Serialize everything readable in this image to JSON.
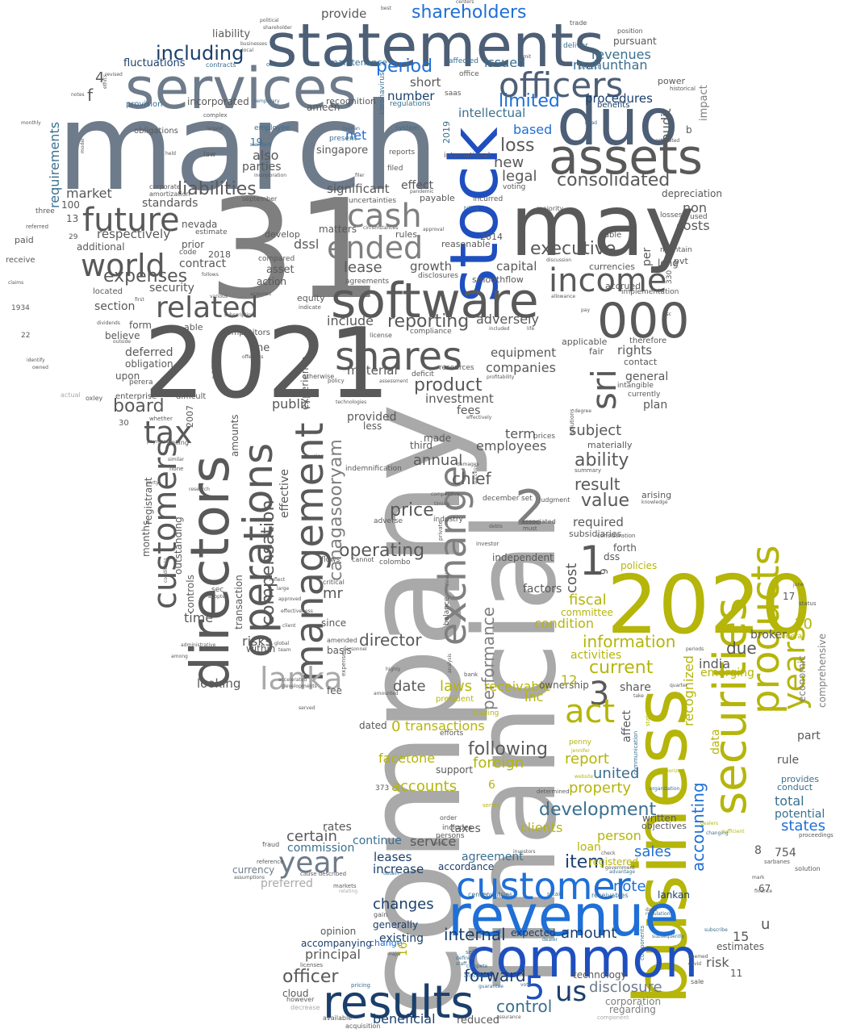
{
  "palette": {
    "slate": "#6e7b8b",
    "slate_dark": "#4d5f76",
    "grey_dark": "#595959",
    "grey_mid": "#7f7f7f",
    "grey_light": "#a9a9a9",
    "blue": "#1f6fd6",
    "blue_deep": "#1f4fbf",
    "olive": "#b5b50a",
    "navy": "#1b3f6b",
    "teal": "#3a6f8f"
  },
  "words": {
    "march": "march",
    "company": "company",
    "financial": "financial",
    "stock": "stock",
    "w31": "31",
    "w2021": "2021",
    "w2020": "2020",
    "statements": "statements",
    "services": "services",
    "duo": "duo",
    "may": "may",
    "assets": "assets",
    "business": "business",
    "securities": "securities",
    "directors": "directors",
    "revenue": "revenue",
    "common": "common",
    "software": "software",
    "officers": "officers",
    "results": "results",
    "management": "management",
    "operations": "operations",
    "customer": "customer",
    "products": "products",
    "w000": "000",
    "shares": "shares",
    "exchange": "exchange",
    "customers": "customers",
    "sri": "sri",
    "income": "income",
    "future": "future",
    "world": "world",
    "cash": "cash",
    "ended": "ended",
    "related": "related",
    "tax": "tax",
    "lanka": "lanka",
    "years": "years",
    "year": "year",
    "w5": "5",
    "us": "us",
    "w3": "3",
    "w2": "2",
    "w1": "1",
    "act": "act",
    "shareholders": "shareholders",
    "period": "period",
    "including": "including",
    "limited": "limited",
    "loss": "loss",
    "consolidated": "consolidated",
    "liabilities": "liabilities",
    "executive": "executive",
    "expenses": "expenses",
    "reporting": "reporting",
    "operating": "operating",
    "compensation": "compensation",
    "canagasooryam": "canagasooryam",
    "board": "board",
    "price": "price",
    "product": "product",
    "chief": "chief",
    "ability": "ability",
    "value": "value",
    "result": "result",
    "director": "director",
    "development": "development",
    "information": "information",
    "current": "current",
    "performance": "performance",
    "accounting": "accounting",
    "officer": "officer",
    "forward": "forward",
    "control": "control",
    "internal": "internal",
    "amount": "amount",
    "note": "note",
    "item": "item",
    "changes": "changes",
    "certain": "certain",
    "principal": "principal",
    "beneficial": "beneficial",
    "disclosure": "disclosure",
    "sales": "sales",
    "report": "report",
    "united": "united",
    "states": "states",
    "property": "property",
    "foreign": "foreign",
    "following": "following",
    "accounts": "accounts",
    "transactions": "transactions",
    "facetone": "facetone",
    "receivable": "receivable",
    "laws": "laws",
    "date": "date",
    "inc": "inc",
    "fiscal": "fiscal",
    "condition": "condition",
    "due": "due",
    "india": "india",
    "risk": "risk",
    "total": "total",
    "potential": "potential",
    "employees": "employees",
    "annual": "annual",
    "investment": "investment",
    "equipment": "equipment",
    "companies": "companies",
    "adversely": "adversely",
    "include": "include",
    "lease": "lease",
    "growth": "growth",
    "capital": "capital",
    "new": "new",
    "legal": "legal",
    "net": "net",
    "based": "based",
    "also": "also",
    "parties": "parties",
    "market": "market",
    "significant": "significant",
    "dssl": "dssl",
    "contract": "contract",
    "security": "security",
    "respectively": "respectively",
    "deferred": "deferred",
    "obligation": "obligation",
    "section": "section",
    "public": "public",
    "material": "material",
    "mr": "mr",
    "time": "time",
    "risks": "risks",
    "looking": "looking",
    "within": "within",
    "experience": "experience",
    "effective": "effective",
    "outstanding": "outstanding",
    "registrant": "registrant",
    "months": "months",
    "controls": "controls",
    "transaction": "transaction",
    "amounts": "amounts",
    "singapore": "singapore",
    "provide": "provide",
    "liability": "liability",
    "number": "number",
    "short": "short",
    "incorporated": "incorporated",
    "ameen": "ameen",
    "recognition": "recognition",
    "procedures": "procedures",
    "revenues": "revenues",
    "muhunthan": "muhunthan",
    "issued": "issued",
    "maintenance": "maintenance",
    "fluctuations": "fluctuations",
    "requirements": "requirements",
    "standards": "standards",
    "nevada": "nevada",
    "additional": "additional",
    "costs": "costs",
    "non": "non",
    "depreciation": "depreciation",
    "audit": "audit",
    "impact": "impact",
    "general": "general",
    "rights": "rights",
    "plan": "plan",
    "subject": "subject",
    "required": "required",
    "subsidiaries": "subsidiaries",
    "independent": "independent",
    "cost": "cost",
    "factors": "factors",
    "committee": "committee",
    "activities": "activities",
    "broker": "broker",
    "emerging": "emerging",
    "recognized": "recognized",
    "data": "data",
    "affect": "affect",
    "share": "share",
    "ownership": "ownership",
    "rule": "rule",
    "part": "part",
    "provides": "provides",
    "conduct": "conduct",
    "clients": "clients",
    "person": "person",
    "loan": "loan",
    "registered": "registered",
    "agreement": "agreement",
    "accordance": "accordance",
    "service": "service",
    "continue": "continue",
    "taxes": "taxes",
    "support": "support",
    "leases": "leases",
    "increase": "increase",
    "commission": "commission",
    "rates": "rates",
    "currency": "currency",
    "preferred": "preferred",
    "existing": "existing",
    "generally": "generally",
    "change": "change",
    "opinion": "opinion",
    "accompanying": "accompanying",
    "cloud": "cloud",
    "expected": "expected",
    "technology": "technology",
    "corporation": "corporation",
    "regarding": "regarding",
    "lankan": "lankan",
    "reduced": "reduced",
    "estimates": "estimates",
    "written": "written",
    "objectives": "objectives",
    "comprehensive": "comprehensive",
    "economic": "economic",
    "policies": "policies",
    "forth": "forth",
    "dss": "dss",
    "paid": "paid",
    "receive": "receive",
    "n4": "4",
    "n100": "100",
    "n13": "13",
    "n10": "10",
    "n12": "12",
    "n15": "15",
    "n16": "16",
    "n8": "8",
    "n754": "754",
    "n9": "9",
    "n17": "17",
    "n11": "11",
    "n67": "67",
    "n0": "0",
    "n6": "6",
    "n19": "19",
    "n2019": "2019",
    "n2014": "2014",
    "n2018": "2018",
    "n2007": "2007",
    "n1934": "1934",
    "n22": "22",
    "n30": "30",
    "n29": "29",
    "n330": "330",
    "n373": "373",
    "u": "u",
    "f": "f",
    "b": "b",
    "one": "one",
    "upon": "upon",
    "form": "form",
    "believe": "believe",
    "enterprise": "enterprise",
    "difficult": "difficult",
    "able": "able",
    "prior": "prior",
    "code": "code",
    "develop": "develop",
    "compared": "compared",
    "asset": "asset",
    "action": "action",
    "matters": "matters",
    "rules": "rules",
    "estimate": "estimate",
    "located": "located",
    "perera": "perera",
    "equity": "equity",
    "competitors": "competitors",
    "provided": "provided",
    "less": "less",
    "made": "made",
    "third": "third",
    "fees": "fees",
    "term": "term",
    "since": "since",
    "basis": "basis",
    "dated": "dated",
    "fee": "fee",
    "per": "per",
    "long": "long",
    "pvt": "pvt",
    "used": "used",
    "losses": "losses",
    "maintain": "maintain",
    "table": "table",
    "applicable": "applicable",
    "fair": "fair",
    "therefore": "therefore",
    "contact": "contact",
    "intangible": "intangible",
    "currently": "currently",
    "materially": "materially",
    "currencies": "currencies",
    "accrued": "accrued",
    "implementation": "implementation",
    "power": "power",
    "historical": "historical",
    "benefits": "benefits",
    "pursuant": "pursuant",
    "position": "position",
    "trade": "trade",
    "deliver": "deliver",
    "protect": "protect",
    "office": "office",
    "saas": "saas",
    "affected": "affected",
    "coronavirus": "coronavirus",
    "regulations": "regulations",
    "intellectual": "intellectual",
    "payable": "payable",
    "incurred": "incurred",
    "voting": "voting",
    "majority": "majority",
    "reasonable": "reasonable",
    "smoothflow": "smoothflow",
    "disclosures": "disclosures",
    "agreements": "agreements",
    "uncertainties": "uncertainties",
    "effect": "effect",
    "filed": "filed",
    "reports": "reports",
    "international": "international",
    "system": "system",
    "present": "present",
    "employee": "employee",
    "provision": "provision",
    "obligations": "obligations",
    "law": "law",
    "temporary": "temporary",
    "amortization": "amortization",
    "corporate": "corporate",
    "september": "september",
    "three": "three",
    "referred": "referred",
    "claims": "claims",
    "identify": "identify",
    "owned": "owned",
    "actual": "actual",
    "oxley": "oxley",
    "notes": "notes",
    "revised": "revised",
    "ethics": "ethics",
    "monthly": "monthly",
    "model": "model",
    "largest": "largest",
    "complex": "complex",
    "held": "held",
    "political": "political",
    "shareholder": "shareholder",
    "businesses": "businesses",
    "local": "local",
    "contracts": "contracts",
    "owner": "owner",
    "centers": "centers",
    "best": "best",
    "whether": "whether",
    "payments": "payments",
    "selling": "selling",
    "similar": "similar",
    "none": "none",
    "party": "party",
    "research": "research",
    "conditions": "conditions",
    "administrative": "administrative",
    "among": "among",
    "sec": "sec",
    "adopted": "adopted",
    "using": "using",
    "indemnification": "indemnification",
    "adverse": "adverse",
    "competitive": "competitive",
    "industry": "industry",
    "cannot": "cannot",
    "colombo": "colombo",
    "flows": "flows",
    "critical": "critical",
    "reflect": "reflect",
    "large": "large",
    "approved": "approved",
    "effectiveness": "effectiveness",
    "client": "client",
    "global": "global",
    "team": "team",
    "accelerated": "accelerated",
    "developments": "developments",
    "amended": "amended",
    "personnel": "personnel",
    "expense": "expense",
    "highly": "highly",
    "amounted": "amounted",
    "served": "served",
    "level": "level",
    "balance": "balance",
    "analysis": "analysis",
    "trading": "trading",
    "bank": "bank",
    "president": "president",
    "efforts": "efforts",
    "order": "order",
    "persons": "persons",
    "includes": "includes",
    "terms": "terms",
    "investors": "investors",
    "dealers": "dealers",
    "change_word": "changing",
    "sufficient": "sufficient",
    "proceedings": "proceedings",
    "solution": "solution",
    "sarbanes": "sarbanes",
    "mark": "mark",
    "finance": "finance",
    "sale": "sale",
    "covid": "covid",
    "deemed": "deemed",
    "subscribe": "subscribe",
    "subsequently": "subsequently",
    "regulation": "regulation",
    "days": "days",
    "advantage": "advantage",
    "government": "government",
    "check": "check",
    "components": "components",
    "pricing": "pricing",
    "guarantee": "guarantee",
    "anticipate": "anticipate",
    "compete": "compete",
    "defined": "defined",
    "staff": "staff",
    "vote": "vote",
    "component": "component",
    "acquisition": "acquisition",
    "assurance": "assurance",
    "available": "available",
    "however": "however",
    "decrease": "decrease",
    "licenses": "licenses",
    "markets": "markets",
    "relating": "relating",
    "gain": "gain",
    "obtain": "obtain",
    "reference": "reference",
    "assumptions": "assumptions",
    "fraud": "fraud",
    "cause_described": "cause described",
    "sell": "sell",
    "center": "center",
    "countries": "countries",
    "retain": "retain",
    "receivables": "receivables",
    "dealer": "dealer",
    "major": "major",
    "determined": "determined",
    "series": "series",
    "authorized": "authorized",
    "organization": "organization",
    "communication": "communication",
    "statement": "statement",
    "penny": "penny",
    "jennifer": "jennifer",
    "website": "website",
    "federal": "federal",
    "periods": "periods",
    "quarter": "quarter",
    "take": "take",
    "status": "status",
    "june": "june",
    "arising": "arising",
    "knowledge": "knowledge",
    "consideration": "consideration",
    "summary": "summary",
    "degree": "degree",
    "solutions": "solutions",
    "prices": "prices",
    "judgment": "judgment",
    "associated": "associated",
    "must": "must",
    "december": "december",
    "set": "set",
    "investor": "investor",
    "debts": "debts",
    "success": "success",
    "private": "private",
    "timing": "timing",
    "damages": "damages",
    "otherwise": "otherwise",
    "resources": "resources",
    "deficit": "deficit",
    "assessment": "assessment",
    "profitability": "profitability",
    "effectively": "effectively",
    "policy": "policy",
    "technologies": "technologies",
    "addition": "addition",
    "reduce": "reduce",
    "license": "license",
    "compliance": "compliance",
    "included": "included",
    "life": "life",
    "offerings": "offerings",
    "outside": "outside",
    "dividends": "dividends",
    "subscription": "subscription",
    "indicate": "indicate",
    "various": "various",
    "first": "first",
    "acquired": "acquired",
    "follows": "follows",
    "allowance": "allowance",
    "pay": "pay",
    "discussion": "discussion",
    "asc": "asc",
    "growth_word": "billing",
    "approval": "approval",
    "circumstances": "circumstances",
    "pandemic": "pandemic",
    "human": "human",
    "standard": "standard",
    "incorporation": "incorporation",
    "filer": "filer",
    "estimated": "estimated",
    "limit": "limit",
    "head": "head"
  }
}
